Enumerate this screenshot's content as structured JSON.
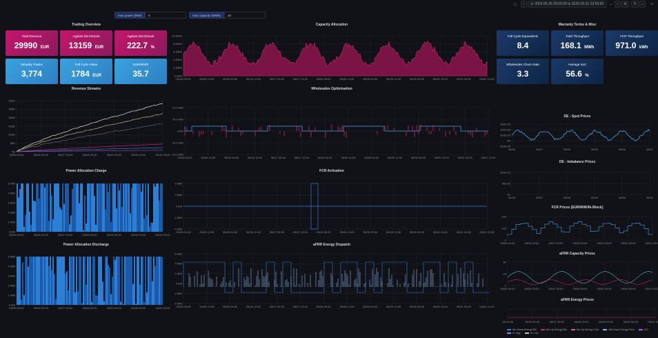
{
  "toolbar": {
    "time_range": "2025-05-25 00:00:00 to 2025-05-31 23:59:59",
    "icons": [
      "help-icon",
      "chevron-left-icon",
      "clock-icon",
      "chevron-right-icon",
      "zoom-out-icon",
      "refresh-icon",
      "chevron-down-icon",
      "tv-icon"
    ]
  },
  "variables": [
    {
      "label": "max power (MW)",
      "value": "5"
    },
    {
      "label": "max capacity (MWh)",
      "value": "10"
    }
  ],
  "sections": {
    "trading_overview": "Trading Overview",
    "capacity_allocation": "Capacity Allocation",
    "warranty": "Warranty Terms & Misc",
    "revenue_streams": "Revenue Streams",
    "wholesales": "Wholesales Optimisation",
    "spot": "DE - Spot Prices",
    "imbalance": "DE - Imbalance Prices",
    "power_charge": "Power Allocation Charge",
    "fcr_activation": "FCR Activation",
    "fcr_prices": "FCR Prices [EUR/MW/4h-Block]",
    "power_discharge": "Power Allocation Discharge",
    "afrr_dispatch": "aFRR Energy Dispatch",
    "afrr_capacity": "aFRR Capacity Prices",
    "afrr_energy": "aFRR Energy Prices"
  },
  "trading_stats": [
    {
      "label": "Total Revenue",
      "value": "29990",
      "unit": "EUR",
      "color": "pink"
    },
    {
      "label": "Against Benchmark",
      "value": "13159",
      "unit": "EUR",
      "color": "pink"
    },
    {
      "label": "Against Benchmark",
      "value": "222.7",
      "unit": "%",
      "color": "pink"
    },
    {
      "label": "Intraday Trades",
      "value": "3,774",
      "unit": "",
      "color": "blue"
    },
    {
      "label": "Full Cycle Value",
      "value": "1784",
      "unit": "EUR",
      "color": "blue"
    },
    {
      "label": "EUR/MW/h",
      "value": "35.7",
      "unit": "",
      "color": "blue"
    }
  ],
  "warranty_stats": [
    {
      "label": "Full Cycle Equivalents",
      "value": "8.4",
      "unit": ""
    },
    {
      "label": "Total Throughput",
      "value": "168.1",
      "unit": "MWh"
    },
    {
      "label": "FCR Throughput",
      "value": "971.0",
      "unit": "kWh"
    },
    {
      "label": "Wholesales Churn Rate",
      "value": "3.3",
      "unit": ""
    },
    {
      "label": "Average SoC",
      "value": "56.6",
      "unit": "%"
    }
  ],
  "axes": {
    "dates": [
      "05/25 00:00",
      "05/26 00:00",
      "05/27 00:00",
      "05/28 00:00",
      "05/29 00:00",
      "05/30 00:00",
      "05/31 00:00"
    ],
    "dates_half": [
      "05/25 00:00",
      "05/25 12:00",
      "05/26 00:00",
      "05/26 12:00",
      "05/27 00:00",
      "05/27 12:00",
      "05/28 00:00",
      "05/28 12:00",
      "05/29 00:00",
      "05/29 12:00",
      "05/30 00:00",
      "05/30 12:00",
      "05/31 00:00",
      "05/31 12:00"
    ],
    "dates_short": [
      "05/26",
      "05/27",
      "05/28",
      "05/29",
      "05/30",
      "05/31"
    ],
    "dates_short_imb": [
      "05/26",
      "05/27",
      "05/28",
      "05/29",
      "05/30",
      "05/31"
    ],
    "capacity_y": [
      "10 MWh",
      "8 MWh",
      "6 MWh",
      "4 MWh",
      "2 MWh",
      "0 kWh"
    ],
    "revenue_y": [
      "€30K",
      "€25K",
      "€20K",
      "€15K",
      "€10K",
      "€5K",
      "€0"
    ],
    "wholesale_y": [
      "20.0 MW",
      "10.0 MW",
      "0 kW",
      "-10.0 MW",
      "-20.0 MW"
    ],
    "spot_y": [
      "€300.00",
      "€200.00",
      "€100.00",
      "€0",
      "-€100.00"
    ],
    "imb_y": [
      "€100.00",
      "€50.00",
      "€0"
    ],
    "charge_y": [
      "5 MW",
      "4 MW",
      "3 MW",
      "2 MW",
      "1 MW",
      "0 kW"
    ],
    "fcr_y": [
      "4 MW",
      "2 MW",
      "0 kW",
      "-2 MW",
      "-4 MW"
    ],
    "fcrp_y": [
      "200",
      "100",
      "0"
    ],
    "disc_y": [
      "5 MW",
      "4 MW",
      "3 MW",
      "2 MW",
      "1 MW",
      "0 kW"
    ],
    "afrr_y": [
      "6 MW",
      "4 MW",
      "2 MW",
      "0 kW",
      "-2 MW",
      "-4 MW"
    ],
    "afrrc_y": [
      "50",
      "25",
      "0"
    ],
    "afrre_x": [
      "'25 00:00",
      "05/26 00:00",
      "05/27 00:00",
      "05/28 00:00",
      "05/29 00:00",
      "05/30 00:00",
      "05/31 00:00"
    ]
  },
  "afrr_legend": [
    "Afrr Down Energy Bid",
    "Afrr Up Energy Bid",
    "Afrr Up Energy Price",
    "Afrr Down Energy Price",
    "ID3",
    "ID High",
    "ID Low"
  ],
  "colors": {
    "pink": "#d0246e",
    "blue": "#4aa6e8",
    "navy": "#16335f",
    "line": "#3a7bd5",
    "grid": "#22252b"
  }
}
